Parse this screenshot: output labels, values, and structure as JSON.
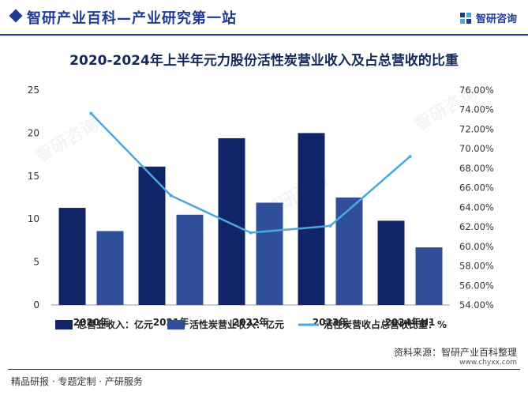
{
  "header": {
    "site_title": "智研产业百科—产业研究第一站",
    "logo_text": "智研咨询",
    "logo_icon": "zhiyan-logo-icon",
    "brand_color": "#1f3a93"
  },
  "chart_data": {
    "type": "bar",
    "title": "2020-2024年上半年元力股份活性炭营业收入及占总营收的比重",
    "categories": [
      "2020年",
      "2021年",
      "2022年",
      "2023年",
      "2024年H1"
    ],
    "series": [
      {
        "name": "总营业收入：亿元",
        "type": "bar",
        "axis": "left",
        "color": "#0f2567",
        "values": [
          11.3,
          16.1,
          19.4,
          20.0,
          9.8
        ]
      },
      {
        "name": "活性炭营业收入：亿元",
        "type": "bar",
        "axis": "left",
        "color": "#2f4f9a",
        "values": [
          8.6,
          10.5,
          11.9,
          12.5,
          6.7
        ]
      },
      {
        "name": "活性炭营收占总营收比重：%",
        "type": "line",
        "axis": "right",
        "color": "#4aa8e0",
        "values": [
          73.6,
          65.2,
          61.4,
          62.1,
          69.2
        ]
      }
    ],
    "y_left": {
      "min": 0,
      "max": 25,
      "ticks": [
        "0",
        "5",
        "10",
        "15",
        "20",
        "25"
      ]
    },
    "y_right": {
      "min": 54,
      "max": 76,
      "ticks": [
        "54.00%",
        "56.00%",
        "58.00%",
        "60.00%",
        "62.00%",
        "64.00%",
        "66.00%",
        "68.00%",
        "70.00%",
        "72.00%",
        "74.00%",
        "76.00%"
      ]
    },
    "legend_position": "bottom",
    "grid": false
  },
  "footer": {
    "source": "资料来源：智研产业百科整理",
    "url": "www.chyxx.com",
    "left_text": "精品研报 · 专题定制 · 产研服务"
  },
  "watermark_text": "智研咨询"
}
